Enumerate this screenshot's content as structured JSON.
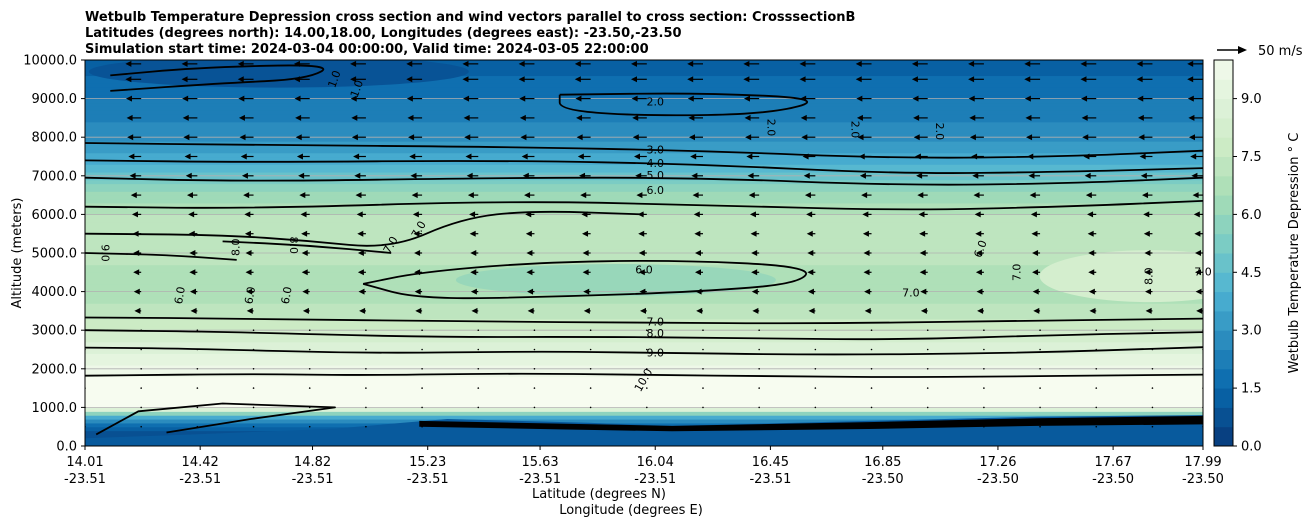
{
  "chart_data": {
    "type": "heatmap",
    "title_lines": [
      "Wetbulb Temperature Depression cross section and wind vectors parallel to cross section: CrosssectionB",
      "Latitudes (degrees north): 14.00,18.00, Longitudes (degrees east): -23.50,-23.50",
      "Simulation start time: 2024-03-04 00:00:00, Valid time: 2024-03-05 22:00:00"
    ],
    "xlabel": "Latitude (degrees N)",
    "xlabel2": "Longitude (degrees E)",
    "ylabel": "Altitude (meters)",
    "xlim": [
      14.01,
      17.99
    ],
    "ylim": [
      0,
      10000
    ],
    "x_ticks": [
      {
        "lat": "14.01",
        "lon": "-23.51",
        "value": 14.01
      },
      {
        "lat": "14.42",
        "lon": "-23.51",
        "value": 14.42
      },
      {
        "lat": "14.82",
        "lon": "-23.51",
        "value": 14.82
      },
      {
        "lat": "15.23",
        "lon": "-23.51",
        "value": 15.23
      },
      {
        "lat": "15.63",
        "lon": "-23.51",
        "value": 15.63
      },
      {
        "lat": "16.04",
        "lon": "-23.51",
        "value": 16.04
      },
      {
        "lat": "16.45",
        "lon": "-23.51",
        "value": 16.45
      },
      {
        "lat": "16.85",
        "lon": "-23.50",
        "value": 16.85
      },
      {
        "lat": "17.26",
        "lon": "-23.50",
        "value": 17.26
      },
      {
        "lat": "17.67",
        "lon": "-23.50",
        "value": 17.67
      },
      {
        "lat": "17.99",
        "lon": "-23.50",
        "value": 17.99
      }
    ],
    "y_ticks": [
      {
        "label": "0.0",
        "value": 0
      },
      {
        "label": "1000.0",
        "value": 1000
      },
      {
        "label": "2000.0",
        "value": 2000
      },
      {
        "label": "3000.0",
        "value": 3000
      },
      {
        "label": "4000.0",
        "value": 4000
      },
      {
        "label": "5000.0",
        "value": 5000
      },
      {
        "label": "6000.0",
        "value": 6000
      },
      {
        "label": "7000.0",
        "value": 7000
      },
      {
        "label": "8000.0",
        "value": 8000
      },
      {
        "label": "9000.0",
        "value": 9000
      },
      {
        "label": "10000.0",
        "value": 10000
      }
    ],
    "colorbar": {
      "label": "Wetbulb Temperature Depression $^\\circ$C",
      "label_display": "Wetbulb Temperature Depression ° C",
      "range": [
        0,
        10
      ],
      "ticks": [
        "0.0",
        "1.5",
        "3.0",
        "4.5",
        "6.0",
        "7.5",
        "9.0"
      ],
      "tick_values": [
        0,
        1.5,
        3,
        4.5,
        6,
        7.5,
        9
      ],
      "colormap": [
        "#084081",
        "#0868ac",
        "#2b8cbe",
        "#4eb3d3",
        "#7bccc4",
        "#a8ddb5",
        "#ccebc5",
        "#e0f3db",
        "#f7fcf0"
      ]
    },
    "quiver_key": {
      "label": "50 m/s",
      "speed": 50
    },
    "depression_profile": [
      {
        "alt": 0,
        "value": 1.0
      },
      {
        "alt": 300,
        "value": 0.8
      },
      {
        "alt": 500,
        "value": 1.5
      },
      {
        "alt": 800,
        "value": 4.0
      },
      {
        "alt": 1000,
        "value": 10.5
      },
      {
        "alt": 1500,
        "value": 10.5
      },
      {
        "alt": 2000,
        "value": 9.6
      },
      {
        "alt": 2500,
        "value": 8.9
      },
      {
        "alt": 3000,
        "value": 8.0
      },
      {
        "alt": 3500,
        "value": 7.2
      },
      {
        "alt": 4000,
        "value": 6.6
      },
      {
        "alt": 5000,
        "value": 7.2
      },
      {
        "alt": 6000,
        "value": 7.0
      },
      {
        "alt": 6500,
        "value": 6.2
      },
      {
        "alt": 7000,
        "value": 4.8
      },
      {
        "alt": 7500,
        "value": 3.6
      },
      {
        "alt": 8000,
        "value": 2.8
      },
      {
        "alt": 9000,
        "value": 2.0
      },
      {
        "alt": 10000,
        "value": 1.2
      }
    ],
    "contours": [
      {
        "label": "10.0",
        "points": [
          [
            14.01,
            1820
          ],
          [
            14.6,
            1870
          ],
          [
            15.0,
            1830
          ],
          [
            15.5,
            1880
          ],
          [
            16.0,
            1850
          ],
          [
            16.5,
            1800
          ],
          [
            17.0,
            1780
          ],
          [
            17.99,
            1850
          ]
        ]
      },
      {
        "label": "9.0",
        "points": [
          [
            14.01,
            2550
          ],
          [
            14.4,
            2520
          ],
          [
            15.0,
            2400
          ],
          [
            15.6,
            2450
          ],
          [
            16.0,
            2420
          ],
          [
            16.6,
            2360
          ],
          [
            17.3,
            2400
          ],
          [
            17.99,
            2560
          ]
        ]
      },
      {
        "label": "8.0",
        "points": [
          [
            14.01,
            3000
          ],
          [
            14.5,
            2960
          ],
          [
            15.2,
            2820
          ],
          [
            15.8,
            2830
          ],
          [
            16.3,
            2800
          ],
          [
            16.9,
            2750
          ],
          [
            17.5,
            2880
          ],
          [
            17.99,
            2950
          ]
        ]
      },
      {
        "label": "7.0",
        "points": [
          [
            14.01,
            3330
          ],
          [
            14.6,
            3300
          ],
          [
            15.4,
            3220
          ],
          [
            16.0,
            3200
          ],
          [
            16.6,
            3170
          ],
          [
            17.2,
            3230
          ],
          [
            17.99,
            3300
          ]
        ]
      },
      {
        "label": "6.0",
        "points": [
          [
            15.0,
            4200
          ],
          [
            15.2,
            4500
          ],
          [
            15.6,
            4750
          ],
          [
            16.1,
            4820
          ],
          [
            16.6,
            4650
          ],
          [
            16.55,
            4200
          ],
          [
            16.2,
            4000
          ],
          [
            15.7,
            3870
          ],
          [
            15.2,
            3800
          ],
          [
            15.0,
            4200
          ]
        ]
      },
      {
        "label": "7.0",
        "points": [
          [
            14.01,
            5500
          ],
          [
            14.5,
            5470
          ],
          [
            14.8,
            5320
          ],
          [
            15.1,
            5100
          ],
          [
            15.35,
            5900
          ],
          [
            15.6,
            6100
          ],
          [
            16.0,
            6000
          ]
        ]
      },
      {
        "label": "8.0",
        "points": [
          [
            14.5,
            5300
          ],
          [
            14.8,
            5200
          ],
          [
            15.1,
            5000
          ]
        ]
      },
      {
        "label": "9.0",
        "points": [
          [
            14.01,
            5000
          ],
          [
            14.3,
            4950
          ],
          [
            14.55,
            4820
          ]
        ]
      },
      {
        "label": "6.0",
        "points": [
          [
            14.01,
            6200
          ],
          [
            14.6,
            6150
          ],
          [
            15.5,
            6350
          ],
          [
            16.2,
            6250
          ],
          [
            16.9,
            6100
          ],
          [
            17.5,
            6200
          ],
          [
            17.99,
            6350
          ]
        ]
      },
      {
        "label": "5.0",
        "points": [
          [
            14.01,
            6950
          ],
          [
            14.6,
            6850
          ],
          [
            15.5,
            6950
          ],
          [
            16.2,
            6950
          ],
          [
            16.9,
            6750
          ],
          [
            17.5,
            6800
          ],
          [
            17.99,
            6950
          ]
        ]
      },
      {
        "label": "4.0",
        "points": [
          [
            14.01,
            7400
          ],
          [
            14.6,
            7350
          ],
          [
            15.5,
            7400
          ],
          [
            16.2,
            7300
          ],
          [
            16.9,
            7050
          ],
          [
            17.5,
            7100
          ],
          [
            17.99,
            7200
          ]
        ]
      },
      {
        "label": "3.0",
        "points": [
          [
            14.01,
            7850
          ],
          [
            14.6,
            7800
          ],
          [
            15.5,
            7750
          ],
          [
            16.2,
            7650
          ],
          [
            16.9,
            7450
          ],
          [
            17.5,
            7500
          ],
          [
            17.99,
            7650
          ]
        ]
      },
      {
        "label": "2.0",
        "points": [
          [
            15.7,
            9100
          ],
          [
            16.2,
            9150
          ],
          [
            16.65,
            9000
          ],
          [
            16.45,
            8600
          ],
          [
            16.0,
            8550
          ],
          [
            15.7,
            8700
          ],
          [
            15.7,
            9100
          ]
        ]
      },
      {
        "label": "1.0",
        "points": [
          [
            14.1,
            9200
          ],
          [
            14.5,
            9400
          ],
          [
            14.8,
            9500
          ],
          [
            14.9,
            9900
          ],
          [
            14.4,
            9800
          ],
          [
            14.1,
            9600
          ]
        ]
      }
    ],
    "contour_labels": [
      "2.0",
      "2.0",
      "2.0",
      "2.0",
      "3.0",
      "4.0",
      "5.0",
      "6.0",
      "6.0",
      "7.0",
      "8.0",
      "9.0",
      "10.0",
      "7.0",
      "7.0",
      "8.0",
      "9.0",
      "6.0",
      "6.0",
      "6.0",
      "8.0",
      "7.0",
      "7.0",
      "7.0",
      "6.0",
      "8.0",
      "1.0",
      "1.0"
    ],
    "wind_rows": [
      {
        "alt": 9900,
        "speed": 18
      },
      {
        "alt": 9500,
        "speed": 18
      },
      {
        "alt": 9000,
        "speed": 17
      },
      {
        "alt": 8500,
        "speed": 16
      },
      {
        "alt": 8000,
        "speed": 15
      },
      {
        "alt": 7500,
        "speed": 13
      },
      {
        "alt": 7000,
        "speed": 11
      },
      {
        "alt": 6500,
        "speed": 9
      },
      {
        "alt": 6000,
        "speed": 7
      },
      {
        "alt": 5500,
        "speed": 6
      },
      {
        "alt": 5000,
        "speed": 5
      },
      {
        "alt": 4500,
        "speed": 5
      },
      {
        "alt": 4000,
        "speed": 4
      },
      {
        "alt": 3500,
        "speed": 3
      },
      {
        "alt": 3000,
        "speed": 2
      },
      {
        "alt": 2500,
        "speed": 1
      },
      {
        "alt": 2000,
        "speed": 0.5
      },
      {
        "alt": 1500,
        "speed": 0.5
      },
      {
        "alt": 1000,
        "speed": 0.5
      },
      {
        "alt": 500,
        "speed": 0.5
      }
    ],
    "wind_cols": [
      14.01,
      14.21,
      14.41,
      14.61,
      14.81,
      15.01,
      15.21,
      15.41,
      15.61,
      15.81,
      16.01,
      16.21,
      16.41,
      16.61,
      16.81,
      17.01,
      17.21,
      17.41,
      17.61,
      17.81,
      17.99
    ]
  }
}
